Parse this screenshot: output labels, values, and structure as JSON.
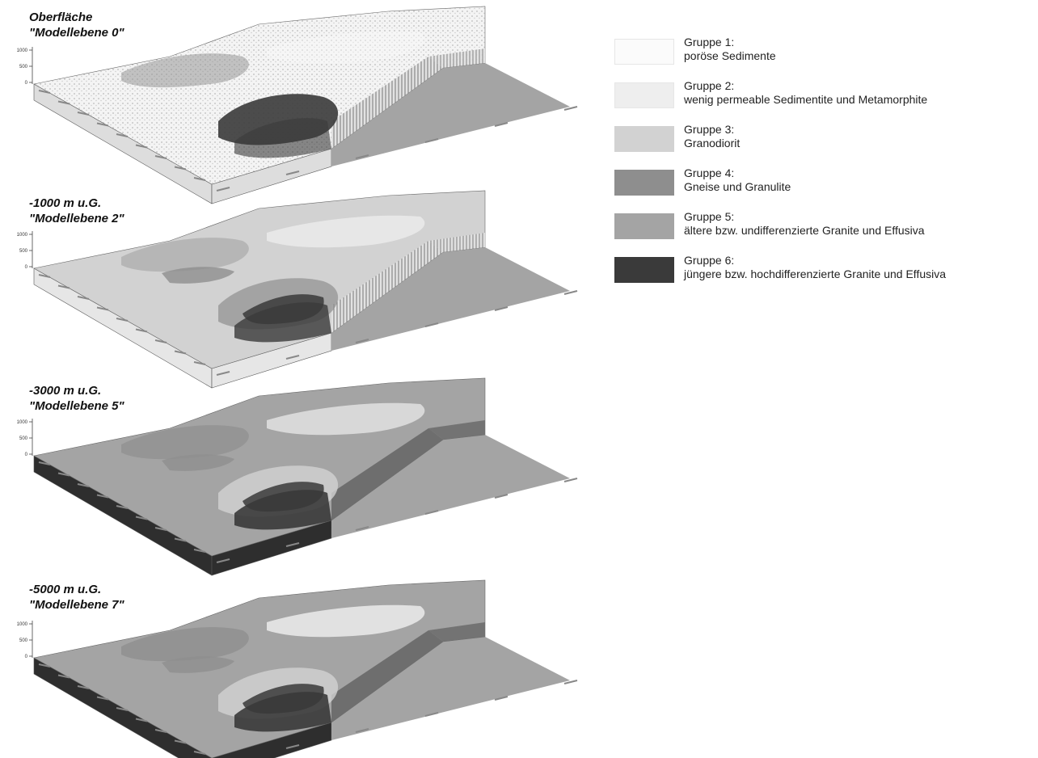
{
  "panels": [
    {
      "title": "Oberfläche",
      "subtitle": "\"Modellebene 0\""
    },
    {
      "title": "-1000 m u.G.",
      "subtitle": "\"Modellebene 2\""
    },
    {
      "title": "-3000 m u.G.",
      "subtitle": "\"Modellebene 5\""
    },
    {
      "title": "-5000 m u.G.",
      "subtitle": "\"Modellebene 7\""
    }
  ],
  "z_axis_ticks": [
    "1000",
    "500",
    "0"
  ],
  "legend": [
    {
      "group": "Gruppe 1:",
      "description": "poröse Sedimente",
      "color": "#fbfbfb"
    },
    {
      "group": "Gruppe 2:",
      "description": "wenig permeable Sedimentite und Metamorphite",
      "color": "#eeeeee"
    },
    {
      "group": "Gruppe 3:",
      "description": "Granodiorit",
      "color": "#d2d2d2"
    },
    {
      "group": "Gruppe 4:",
      "description": "Gneise und Granulite",
      "color": "#8e8e8e"
    },
    {
      "group": "Gruppe 5:",
      "description": "ältere bzw. undifferenzierte Granite und Effusiva",
      "color": "#a4a4a4"
    },
    {
      "group": "Gruppe 6:",
      "description": "jüngere bzw. hochdifferenzierte Granite und Effusiva",
      "color": "#3a3a3a"
    }
  ]
}
